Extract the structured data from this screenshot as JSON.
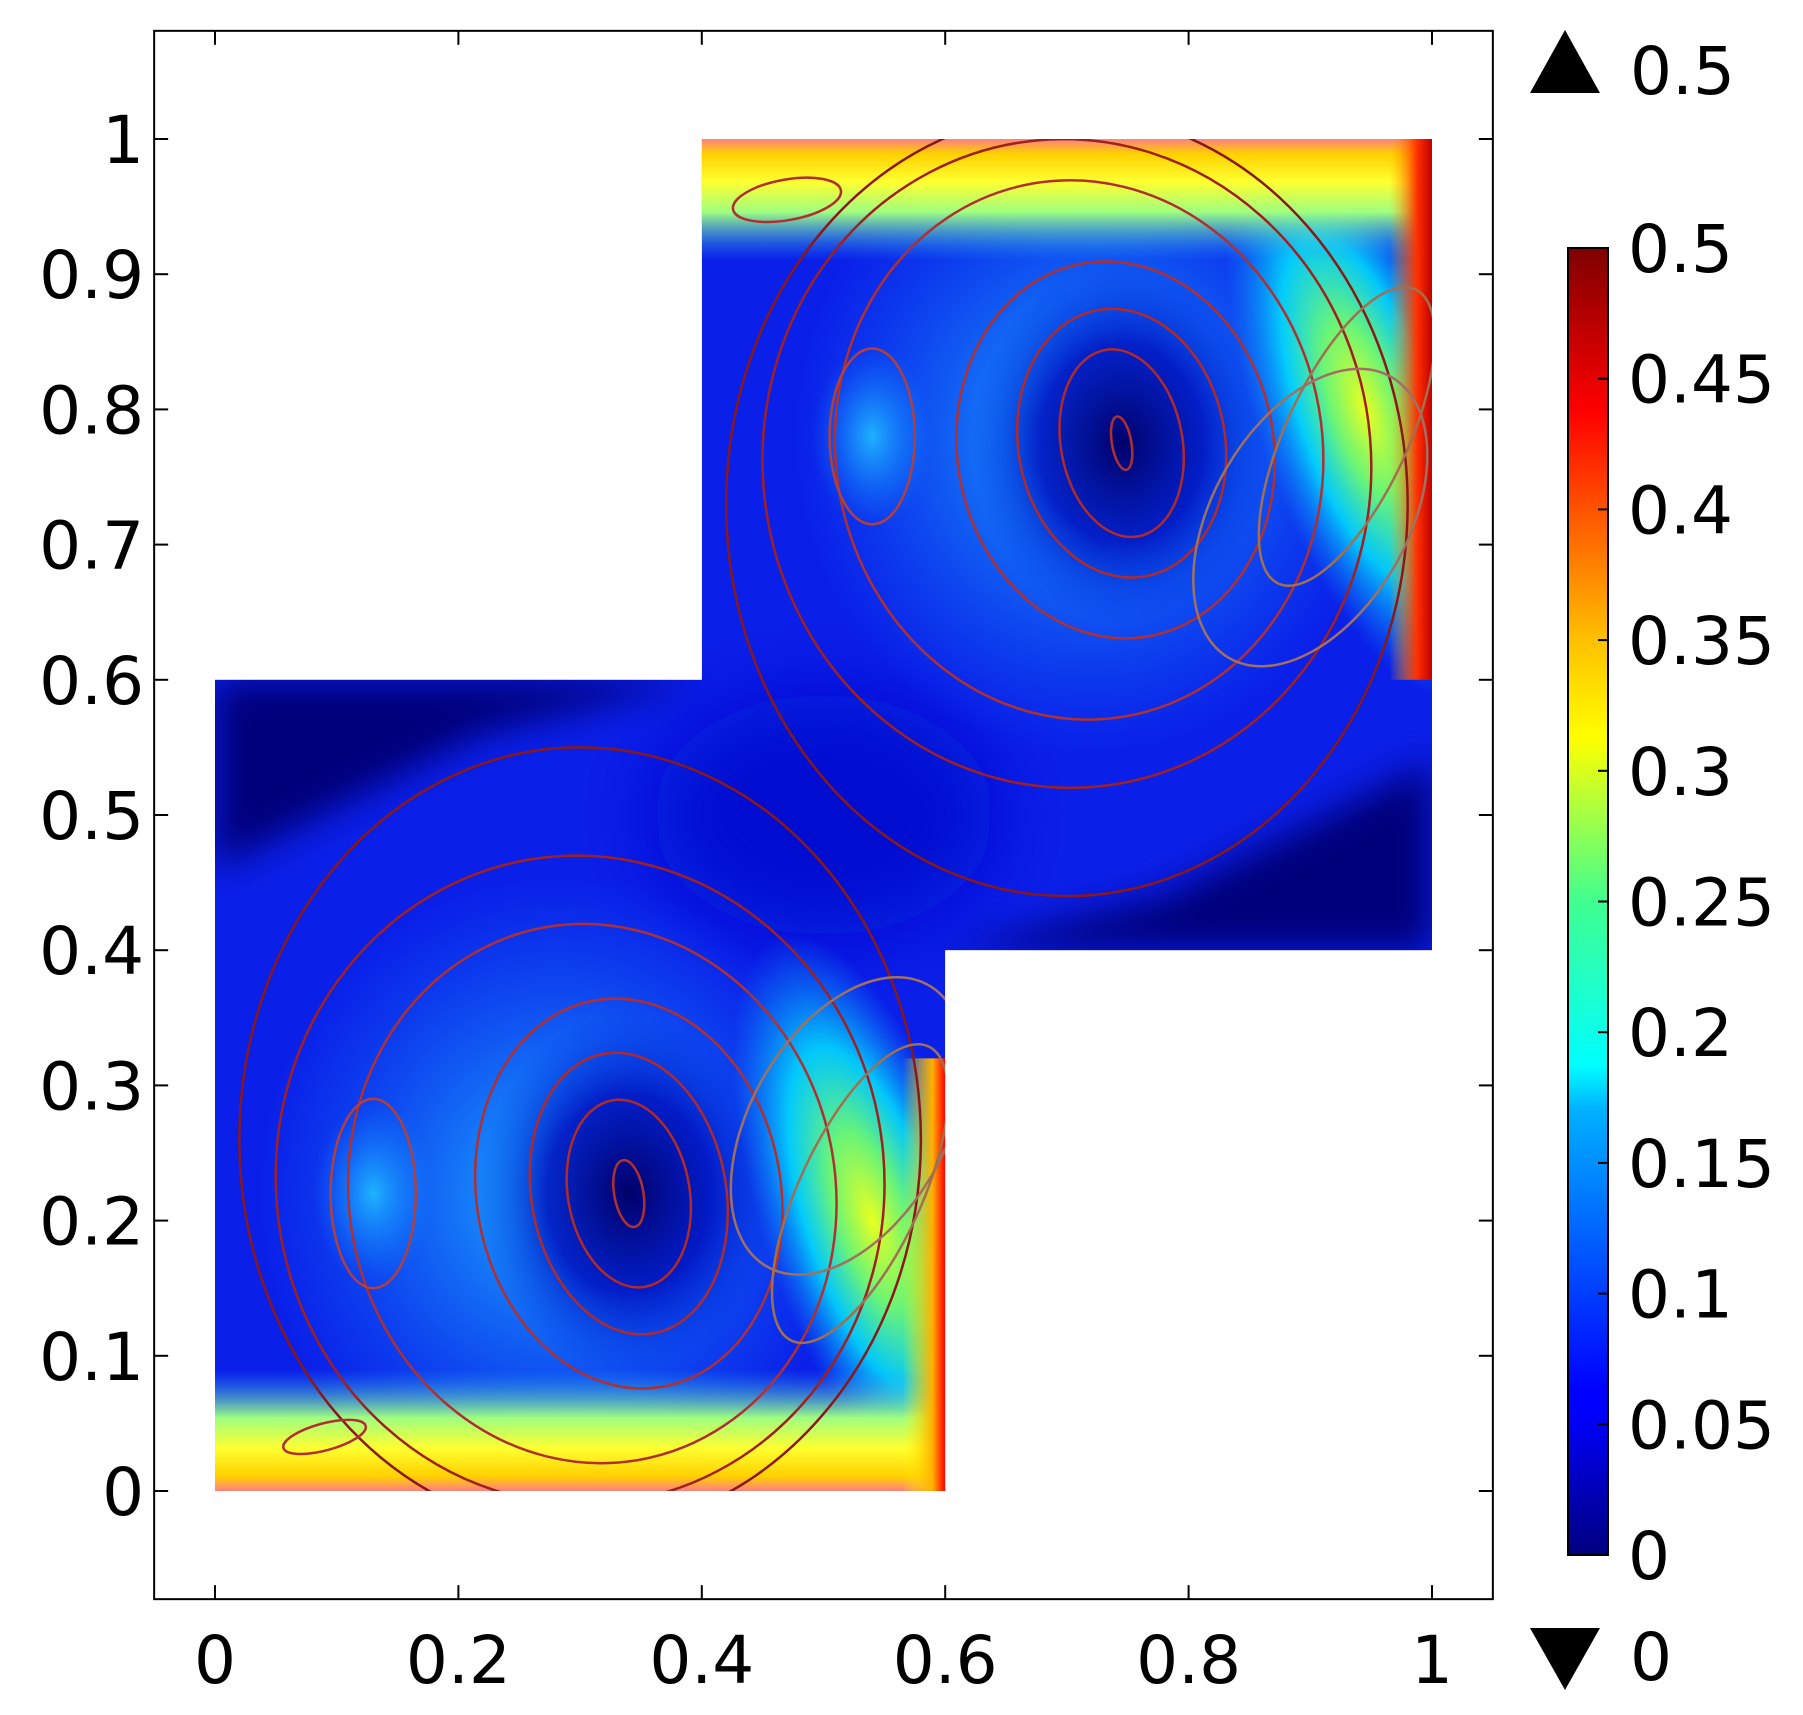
{
  "chart_data": {
    "type": "heatmap",
    "title": "",
    "xlabel": "",
    "ylabel": "",
    "xlim": [
      -0.05,
      1.05
    ],
    "ylim": [
      -0.08,
      1.08
    ],
    "x_ticks": [
      0,
      0.2,
      0.4,
      0.6,
      0.8,
      1
    ],
    "x_tick_labels": [
      "0",
      "0.2",
      "0.4",
      "0.6",
      "0.8",
      "1"
    ],
    "y_ticks": [
      0,
      0.1,
      0.2,
      0.3,
      0.4,
      0.5,
      0.6,
      0.7,
      0.8,
      0.9,
      1
    ],
    "y_tick_labels": [
      "0",
      "0.1",
      "0.2",
      "0.3",
      "0.4",
      "0.5",
      "0.6",
      "0.7",
      "0.8",
      "0.9",
      "1"
    ],
    "grid": false,
    "colormap": "jet",
    "colorbar": {
      "min": 0,
      "max": 0.5,
      "ticks": [
        0,
        0.05,
        0.1,
        0.15,
        0.2,
        0.25,
        0.3,
        0.35,
        0.4,
        0.45,
        0.5
      ],
      "tick_labels": [
        "0",
        "0.05",
        "0.1",
        "0.15",
        "0.2",
        "0.25",
        "0.3",
        "0.35",
        "0.4",
        "0.45",
        "0.5"
      ],
      "range_max_label": "0.5",
      "range_min_label": "0"
    },
    "domain_polygon": [
      [
        0,
        0
      ],
      [
        0.6,
        0
      ],
      [
        0.6,
        0.4
      ],
      [
        1,
        0.4
      ],
      [
        1,
        1
      ],
      [
        0.4,
        1
      ],
      [
        0.4,
        0.6
      ],
      [
        0,
        0.6
      ]
    ],
    "vortex_centers": [
      {
        "x": 0.34,
        "y": 0.22,
        "value": 0.02
      },
      {
        "x": 0.745,
        "y": 0.775,
        "value": 0.02
      },
      {
        "x": 0.13,
        "y": 0.22,
        "value": 0.14
      },
      {
        "x": 0.54,
        "y": 0.78,
        "value": 0.14
      },
      {
        "x": 0.08,
        "y": 0.04,
        "value": 0.04
      },
      {
        "x": 0.5,
        "y": 0.96,
        "value": 0.04
      }
    ],
    "high_speed_regions": [
      {
        "x": 0.56,
        "y": 0.15,
        "value": 0.32
      },
      {
        "x": 0.97,
        "y": 0.85,
        "value": 0.32
      },
      {
        "x": 0.35,
        "y": 0.01,
        "value": 0.5
      },
      {
        "x": 0.75,
        "y": 0.99,
        "value": 0.5
      }
    ]
  }
}
